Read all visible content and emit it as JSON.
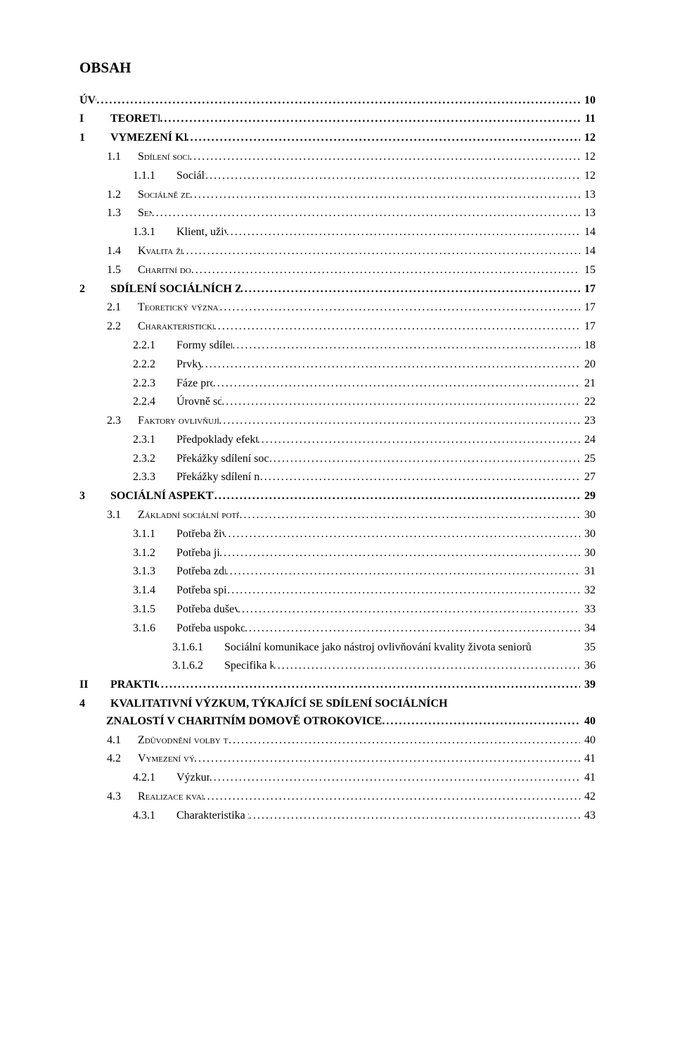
{
  "heading": "OBSAH",
  "entries": [
    {
      "num": "",
      "label": "ÚVOD",
      "page": "10",
      "level": "root",
      "bold": true,
      "sc": false
    },
    {
      "num": "I",
      "label": "TEORETICKÁ ČÁST",
      "page": "11",
      "level": 0,
      "bold": true,
      "sc": false
    },
    {
      "num": "1",
      "label": "VYMEZENÍ KLÍČOVÝCH POJMŮ",
      "page": "12",
      "level": 0,
      "bold": true,
      "sc": false
    },
    {
      "num": "1.1",
      "label": "Sdílení sociálních znalostí",
      "page": "12",
      "level": 1,
      "bold": false,
      "sc": true
    },
    {
      "num": "1.1.1",
      "label": "Sociální znalost",
      "page": "12",
      "level": 2,
      "bold": false,
      "sc": false
    },
    {
      "num": "1.2",
      "label": "Sociálně zdravotnický tým",
      "page": "13",
      "level": 1,
      "bold": false,
      "sc": true
    },
    {
      "num": "1.3",
      "label": "Senior",
      "page": "13",
      "level": 1,
      "bold": false,
      "sc": true
    },
    {
      "num": "1.3.1",
      "label": "Klient, uživatel sociální péče",
      "page": "14",
      "level": 2,
      "bold": false,
      "sc": false
    },
    {
      "num": "1.4",
      "label": "Kvalita života seniorů",
      "page": "14",
      "level": 1,
      "bold": false,
      "sc": true
    },
    {
      "num": "1.5",
      "label": "Charitní domov Otrokovice",
      "page": "15",
      "level": 1,
      "bold": false,
      "sc": true
    },
    {
      "num": "2",
      "label": "SDÍLENÍ SOCIÁLNÍCH ZNALOSTÍ V POMÁHAJÍCÍCH PROFESÍCH",
      "page": "17",
      "level": 0,
      "bold": true,
      "sc": false
    },
    {
      "num": "2.1",
      "label": "Teoretický význam sdílení sociálních znalostí",
      "page": "17",
      "level": 1,
      "bold": false,
      "sc": true
    },
    {
      "num": "2.2",
      "label": "Charakteristické znaky sdílení v SZ týmu",
      "page": "17",
      "level": 1,
      "bold": false,
      "sc": true
    },
    {
      "num": "2.2.1",
      "label": "Formy sdílení sociálních znalostí",
      "page": "18",
      "level": 2,
      "bold": false,
      "sc": false
    },
    {
      "num": "2.2.2",
      "label": "Prvky sdílení",
      "page": "20",
      "level": 2,
      "bold": false,
      "sc": false
    },
    {
      "num": "2.2.3",
      "label": "Fáze procesu sdílení",
      "page": "21",
      "level": 2,
      "bold": false,
      "sc": false
    },
    {
      "num": "2.2.4",
      "label": "Úrovně sdílení v SZ týmu",
      "page": "22",
      "level": 2,
      "bold": false,
      "sc": false
    },
    {
      "num": "2.3",
      "label": "Faktory ovlivňující kvalitu sdílení v SZ týmu",
      "page": "23",
      "level": 1,
      "bold": false,
      "sc": true
    },
    {
      "num": "2.3.1",
      "label": "Předpoklady efektivního sdílení znalostí v SZ týmu",
      "page": "24",
      "level": 2,
      "bold": false,
      "sc": false
    },
    {
      "num": "2.3.2",
      "label": "Překážky sdílení sociálních znalostí na straně členů S-Z týmu",
      "page": "25",
      "level": 2,
      "bold": false,
      "sc": false
    },
    {
      "num": "2.3.3",
      "label": "Překážky sdílení na straně seniorů jako příjemců péče",
      "page": "27",
      "level": 2,
      "bold": false,
      "sc": false
    },
    {
      "num": "3",
      "label": "SOCIÁLNÍ ASPEKTY KVALITY ŽIVOTA SENIORŮ",
      "page": "29",
      "level": 0,
      "bold": true,
      "sc": false
    },
    {
      "num": "3.1",
      "label": "Základní sociální potřeby, ovlivňující kvalitu života seniorů",
      "page": "30",
      "level": 1,
      "bold": false,
      "sc": true
    },
    {
      "num": "3.1.1",
      "label": "Potřeba životní perspektivy",
      "page": "30",
      "level": 2,
      "bold": false,
      "sc": false
    },
    {
      "num": "3.1.2",
      "label": "Potřeba jistoty a bezpečí",
      "page": "30",
      "level": 2,
      "bold": false,
      "sc": false
    },
    {
      "num": "3.1.3",
      "label": "Potřeba zdravého sebepřijetí",
      "page": "31",
      "level": 2,
      "bold": false,
      "sc": false
    },
    {
      "num": "3.1.4",
      "label": "Potřeba spirituální rovnováhy",
      "page": "32",
      "level": 2,
      "bold": false,
      "sc": false
    },
    {
      "num": "3.1.5",
      "label": "Potřeba duševní aktivity a aktivizace",
      "page": "33",
      "level": 2,
      "bold": false,
      "sc": false
    },
    {
      "num": "3.1.6",
      "label": "Potřeba uspokojivých sociálních kontaktů",
      "page": "34",
      "level": 2,
      "bold": false,
      "sc": false
    },
    {
      "num": "3.1.6.1",
      "label": "Sociální komunikace jako nástroj ovlivňování kvality života seniorů",
      "page": "35",
      "level": 3,
      "bold": false,
      "sc": false,
      "noleader": true
    },
    {
      "num": "3.1.6.2",
      "label": "Specifika komunikace se seniory",
      "page": "36",
      "level": 3,
      "bold": false,
      "sc": false
    },
    {
      "num": "II",
      "label": "PRAKTICKÁ ČÁST",
      "page": "39",
      "level": 0,
      "bold": true,
      "sc": false
    },
    {
      "num": "4",
      "label": "KVALITATIVNÍ VÝZKUM, TÝKAJÍCÍ SE SDÍLENÍ SOCIÁLNÍCH ZNALOSTÍ V CHARITNÍM DOMOVĚ OTROKOVICE",
      "page": "40",
      "level": 0,
      "bold": true,
      "sc": false,
      "wrap": true
    },
    {
      "num": "4.1",
      "label": "Zdůvodnění volby typu výzkumu a výzkumné metody",
      "page": "40",
      "level": 1,
      "bold": false,
      "sc": true
    },
    {
      "num": "4.2",
      "label": "Vymezení výzkumných otázek",
      "page": "41",
      "level": 1,
      "bold": false,
      "sc": true
    },
    {
      "num": "4.2.1",
      "label": "Výzkumné otázky",
      "page": "41",
      "level": 2,
      "bold": false,
      "sc": false
    },
    {
      "num": "4.3",
      "label": "Realizace kvantitativního výzkumu",
      "page": "42",
      "level": 1,
      "bold": false,
      "sc": true
    },
    {
      "num": "4.3.1",
      "label": "Charakteristika zvoleného ústavního zařízení",
      "page": "43",
      "level": 2,
      "bold": false,
      "sc": false
    }
  ]
}
